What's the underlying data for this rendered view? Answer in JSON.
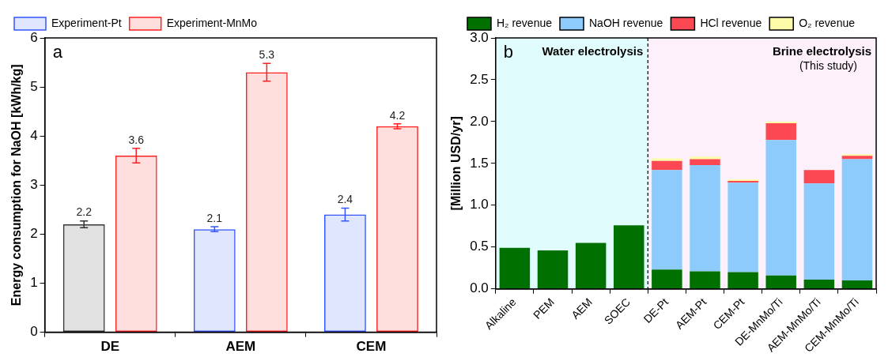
{
  "chart_data": [
    {
      "type": "bar",
      "annotations": [
        "a"
      ],
      "ylabel": "Energy consumption for NaOH [kWh/kg]",
      "categories": [
        "DE",
        "AEM",
        "CEM"
      ],
      "series": [
        {
          "name": "Experiment-Pt",
          "color": "#3355ff",
          "colors": [
            "#333333",
            "#3355ff",
            "#3355ff"
          ],
          "values": [
            2.2,
            2.1,
            2.4
          ],
          "errors": [
            0.07,
            0.05,
            0.13
          ]
        },
        {
          "name": "Experiment-MnMo",
          "color": "#ff2020",
          "values": [
            3.6,
            5.3,
            4.2
          ],
          "errors": [
            0.15,
            0.18,
            0.05
          ]
        }
      ],
      "ylim": [
        0,
        6
      ],
      "yticks": [
        0,
        1,
        2,
        3,
        4,
        5,
        6
      ],
      "data_labels": true,
      "grid": false,
      "legend": "top left"
    },
    {
      "type": "bar",
      "stacked": true,
      "annotations": [
        "b"
      ],
      "ylabel": "[Million USD/yr]",
      "categories": [
        "Alkaline",
        "PEM",
        "AEM",
        "SOEC",
        "DE-Pt",
        "AEM-Pt",
        "CEM-Pt",
        "DE-MnMo/Ti",
        "AEM-MnMo/Ti",
        "CEM-MnMo/Ti"
      ],
      "series": [
        {
          "name": "H₂ revenue",
          "color": "#007000",
          "values": [
            0.49,
            0.46,
            0.55,
            0.76,
            0.23,
            0.21,
            0.2,
            0.16,
            0.11,
            0.1
          ]
        },
        {
          "name": "NaOH revenue",
          "color": "#8ccbfb",
          "values": [
            null,
            null,
            null,
            null,
            1.19,
            1.27,
            1.07,
            1.62,
            1.15,
            1.45
          ]
        },
        {
          "name": "HCl revenue",
          "color": "#fb4852",
          "values": [
            null,
            null,
            null,
            null,
            0.11,
            0.07,
            0.02,
            0.2,
            0.16,
            0.04
          ]
        },
        {
          "name": "O₂ revenue",
          "color": "#fdfca8",
          "values": [
            null,
            null,
            null,
            null,
            0.03,
            0.03,
            0.02,
            0.02,
            null,
            0.02
          ]
        }
      ],
      "bands": [
        {
          "axis": "x",
          "from": "Alkaline",
          "to": "SOEC",
          "label": "Water electrolysis",
          "color": "#e0fcfd"
        },
        {
          "axis": "x",
          "from": "DE-Pt",
          "to": "CEM-MnMo/Ti",
          "label": "Brine electrolysis\n(This study)",
          "color": "#fdf0fb"
        }
      ],
      "ylim": [
        0,
        3
      ],
      "yticks": [
        {
          "value": 0,
          "label": "0.0"
        },
        {
          "value": 0.5,
          "label": "0.5"
        },
        {
          "value": 1,
          "label": "1.0"
        },
        {
          "value": 1.5,
          "label": "1.5"
        },
        {
          "value": 2,
          "label": "2.0"
        },
        {
          "value": 2.5,
          "label": "2.5"
        },
        {
          "value": 3,
          "label": "3.0"
        }
      ],
      "grid": false,
      "legend": "top"
    }
  ]
}
